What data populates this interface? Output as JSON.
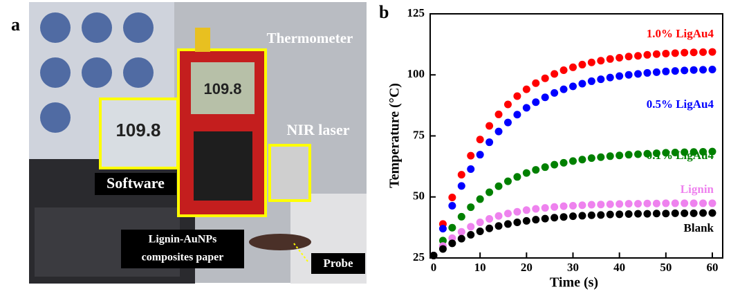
{
  "panel_labels": [
    "a",
    "b"
  ],
  "photo_labels": {
    "thermometer": "Thermometer",
    "software": "Software",
    "laser": "NIR laser",
    "paper_line1": "Lignin-AuNPs",
    "paper_line2": "composites paper",
    "probe": "Probe",
    "display": "109.8"
  },
  "chart_data": {
    "type": "scatter",
    "x_label": "Time (s)",
    "y_label": "Temperature (°C)",
    "xlim": [
      0,
      60
    ],
    "ylim": [
      25,
      125
    ],
    "xticks": [
      0,
      10,
      20,
      30,
      40,
      50,
      60
    ],
    "yticks": [
      25,
      50,
      75,
      100,
      125
    ],
    "x": [
      0,
      2,
      4,
      6,
      8,
      10,
      12,
      14,
      16,
      18,
      20,
      22,
      24,
      26,
      28,
      30,
      32,
      34,
      36,
      38,
      40,
      42,
      44,
      46,
      48,
      50,
      52,
      54,
      56,
      58,
      60
    ],
    "series": [
      {
        "name": "1.0% LigAu4",
        "color": "#ff0000",
        "values": [
          26,
          38.9,
          49.8,
          59.1,
          66.9,
          73.5,
          79.1,
          83.8,
          87.9,
          91.3,
          94.1,
          96.6,
          98.6,
          100.4,
          101.9,
          103.1,
          104.2,
          105.1,
          105.8,
          106.5,
          107.0,
          107.5,
          107.8,
          108.2,
          108.5,
          108.7,
          108.9,
          109.1,
          109.2,
          109.3,
          109.4
        ]
      },
      {
        "name": "0.5% LigAu4",
        "color": "#0000ff",
        "values": [
          26,
          37.0,
          46.4,
          54.5,
          61.4,
          67.3,
          72.4,
          76.8,
          80.5,
          83.7,
          86.5,
          88.8,
          90.8,
          92.6,
          94.1,
          95.3,
          96.4,
          97.4,
          98.2,
          98.9,
          99.5,
          100.0,
          100.4,
          100.8,
          101.1,
          101.4,
          101.6,
          101.8,
          102.0,
          102.1,
          102.2
        ]
      },
      {
        "name": "0.1% LigAu4",
        "color": "#008000",
        "values": [
          26,
          32.1,
          37.4,
          41.9,
          45.8,
          49.1,
          51.9,
          54.4,
          56.4,
          58.2,
          59.8,
          61.1,
          62.2,
          63.2,
          64.0,
          64.7,
          65.3,
          65.9,
          66.3,
          66.7,
          67.0,
          67.3,
          67.5,
          67.7,
          67.9,
          68.1,
          68.2,
          68.3,
          68.4,
          68.5,
          68.6
        ]
      },
      {
        "name": "Lignin",
        "color": "#ee82ee",
        "values": [
          26,
          29.9,
          33.1,
          35.7,
          37.8,
          39.6,
          41.0,
          42.2,
          43.2,
          43.9,
          44.6,
          45.1,
          45.5,
          45.9,
          46.2,
          46.4,
          46.6,
          46.8,
          46.9,
          47.0,
          47.1,
          47.2,
          47.2,
          47.3,
          47.3,
          47.4,
          47.4,
          47.4,
          47.4,
          47.4,
          47.4
        ]
      },
      {
        "name": "Blank",
        "color": "#000000",
        "values": [
          26,
          28.7,
          31.0,
          32.9,
          34.5,
          35.9,
          37.1,
          38.1,
          38.9,
          39.6,
          40.2,
          40.7,
          41.1,
          41.5,
          41.8,
          42.1,
          42.3,
          42.5,
          42.6,
          42.8,
          42.9,
          43.0,
          43.1,
          43.1,
          43.2,
          43.2,
          43.3,
          43.3,
          43.3,
          43.4,
          43.4
        ]
      }
    ]
  }
}
